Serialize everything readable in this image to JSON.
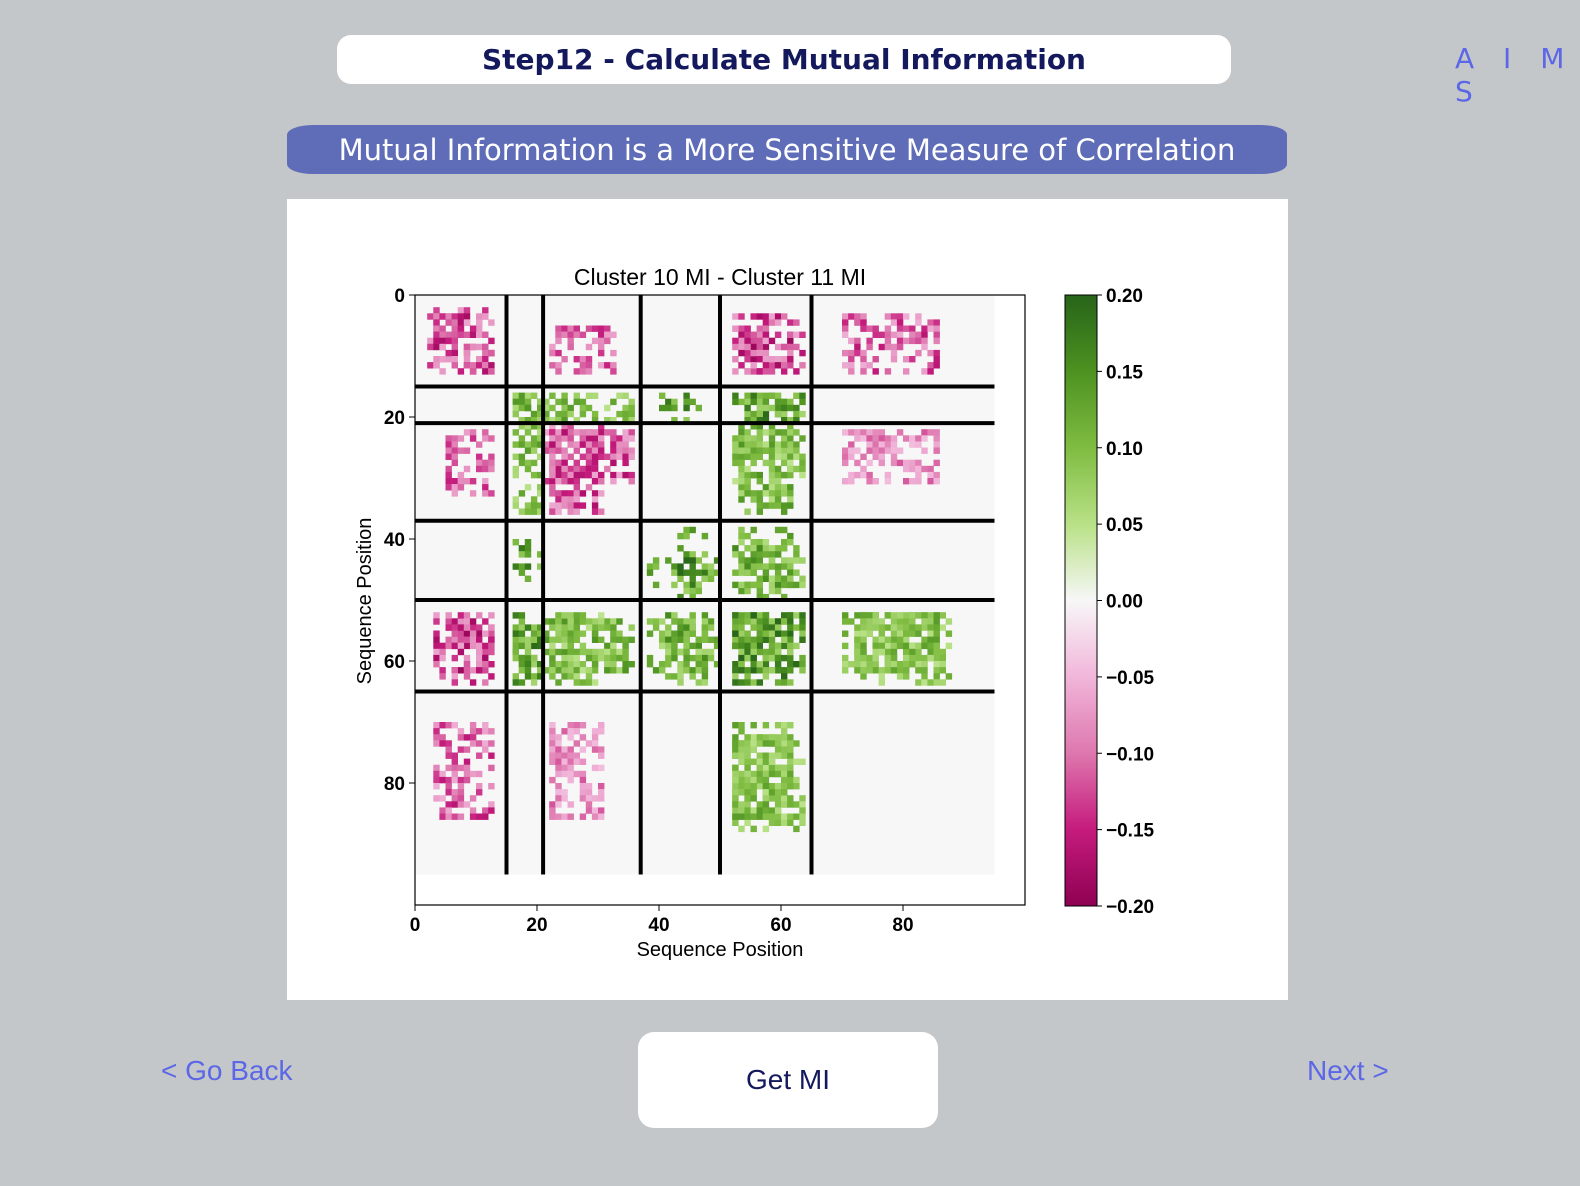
{
  "header": {
    "step_title": "Step12 - Calculate Mutual Information",
    "brand": "A I M S"
  },
  "banner": {
    "subtitle": "Mutual Information is a More Sensitive Measure of Correlation"
  },
  "nav": {
    "back_label": "< Go Back",
    "next_label": "Next >",
    "action_label": "Get MI"
  },
  "colors": {
    "background": "#c4c7ca",
    "accent": "#5b67e6",
    "banner": "#5f6cb7",
    "title_text": "#13195c"
  },
  "chart_data": {
    "type": "heatmap",
    "title": "Cluster 10 MI - Cluster 11 MI",
    "xlabel": "Sequence Position",
    "ylabel": "Sequence Position",
    "x_ticks": [
      "0",
      "20",
      "40",
      "60",
      "80"
    ],
    "y_ticks": [
      "0",
      "20",
      "40",
      "60",
      "80"
    ],
    "xlim": [
      0,
      100
    ],
    "ylim": [
      100,
      0
    ],
    "matrix_size": 95,
    "colormap": "PiYG",
    "colorbar_ticks": [
      "0.20",
      "0.15",
      "0.10",
      "0.05",
      "0.00",
      "−0.05",
      "−0.10",
      "−0.15",
      "−0.20"
    ],
    "color_range": [
      -0.2,
      0.2
    ],
    "domain_boundaries": [
      15,
      21,
      37,
      50,
      65
    ],
    "block_patterns": [
      {
        "rows": [
          2,
          12
        ],
        "cols": [
          3,
          12
        ],
        "value": -0.18
      },
      {
        "rows": [
          5,
          12
        ],
        "cols": [
          22,
          32
        ],
        "value": -0.15
      },
      {
        "rows": [
          5,
          12
        ],
        "cols": [
          53,
          61
        ],
        "value": -0.19
      },
      {
        "rows": [
          16,
          20
        ],
        "cols": [
          16,
          20
        ],
        "value": 0.17
      },
      {
        "rows": [
          16,
          20
        ],
        "cols": [
          53,
          60
        ],
        "value": 0.2
      },
      {
        "rows": [
          16,
          20
        ],
        "cols": [
          40,
          46
        ],
        "value": 0.18
      },
      {
        "rows": [
          21,
          35
        ],
        "cols": [
          16,
          20
        ],
        "value": 0.14
      },
      {
        "rows": [
          21,
          35
        ],
        "cols": [
          22,
          30
        ],
        "value": -0.17
      },
      {
        "rows": [
          21,
          35
        ],
        "cols": [
          53,
          61
        ],
        "value": 0.15
      },
      {
        "rows": [
          38,
          49
        ],
        "cols": [
          43,
          47
        ],
        "value": 0.2
      },
      {
        "rows": [
          38,
          49
        ],
        "cols": [
          53,
          61
        ],
        "value": 0.16
      },
      {
        "rows": [
          52,
          63
        ],
        "cols": [
          52,
          61
        ],
        "value": 0.2
      },
      {
        "rows": [
          52,
          63
        ],
        "cols": [
          16,
          20
        ],
        "value": 0.18
      },
      {
        "rows": [
          52,
          63
        ],
        "cols": [
          3,
          12
        ],
        "value": -0.18
      },
      {
        "rows": [
          52,
          63
        ],
        "cols": [
          22,
          30
        ],
        "value": 0.13
      },
      {
        "rows": [
          52,
          63
        ],
        "cols": [
          41,
          47
        ],
        "value": 0.16
      },
      {
        "rows": [
          52,
          63
        ],
        "cols": [
          72,
          87
        ],
        "value": 0.12
      },
      {
        "rows": [
          70,
          85
        ],
        "cols": [
          52,
          61
        ],
        "value": 0.14
      },
      {
        "rows": [
          70,
          85
        ],
        "cols": [
          3,
          12
        ],
        "value": -0.16
      },
      {
        "rows": [
          70,
          85
        ],
        "cols": [
          22,
          30
        ],
        "value": -0.12
      }
    ]
  }
}
